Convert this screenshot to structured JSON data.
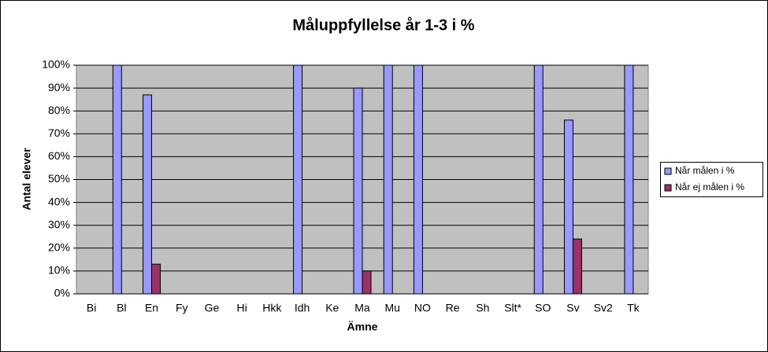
{
  "chart_data": {
    "type": "bar",
    "title": "Måluppfyllelse år 1-3 i %",
    "x_label": "Ämne",
    "y_label": "Antal elever",
    "categories": [
      "Bi",
      "Bl",
      "En",
      "Fy",
      "Ge",
      "Hi",
      "Hkk",
      "Idh",
      "Ke",
      "Ma",
      "Mu",
      "NO",
      "Re",
      "Sh",
      "Slt*",
      "SO",
      "Sv",
      "Sv2",
      "Tk"
    ],
    "series": [
      {
        "name": "Når målen i %",
        "color": "#9999ff",
        "values": [
          null,
          100,
          87,
          null,
          null,
          null,
          null,
          100,
          null,
          90,
          100,
          100,
          null,
          null,
          null,
          100,
          76,
          null,
          100
        ]
      },
      {
        "name": "Når ej målen i %",
        "color": "#993366",
        "values": [
          null,
          null,
          13,
          null,
          null,
          null,
          null,
          null,
          null,
          10,
          null,
          null,
          null,
          null,
          null,
          null,
          24,
          null,
          null
        ]
      }
    ],
    "ylim": [
      0,
      100
    ],
    "yticks": [
      {
        "value": 0,
        "label": "0%"
      },
      {
        "value": 10,
        "label": "10%"
      },
      {
        "value": 20,
        "label": "20%"
      },
      {
        "value": 30,
        "label": "30%"
      },
      {
        "value": 40,
        "label": "40%"
      },
      {
        "value": 50,
        "label": "50%"
      },
      {
        "value": 60,
        "label": "60%"
      },
      {
        "value": 70,
        "label": "70%"
      },
      {
        "value": 80,
        "label": "80%"
      },
      {
        "value": 90,
        "label": "90%"
      },
      {
        "value": 100,
        "label": "100%"
      }
    ],
    "grid": true,
    "legend": "right"
  }
}
